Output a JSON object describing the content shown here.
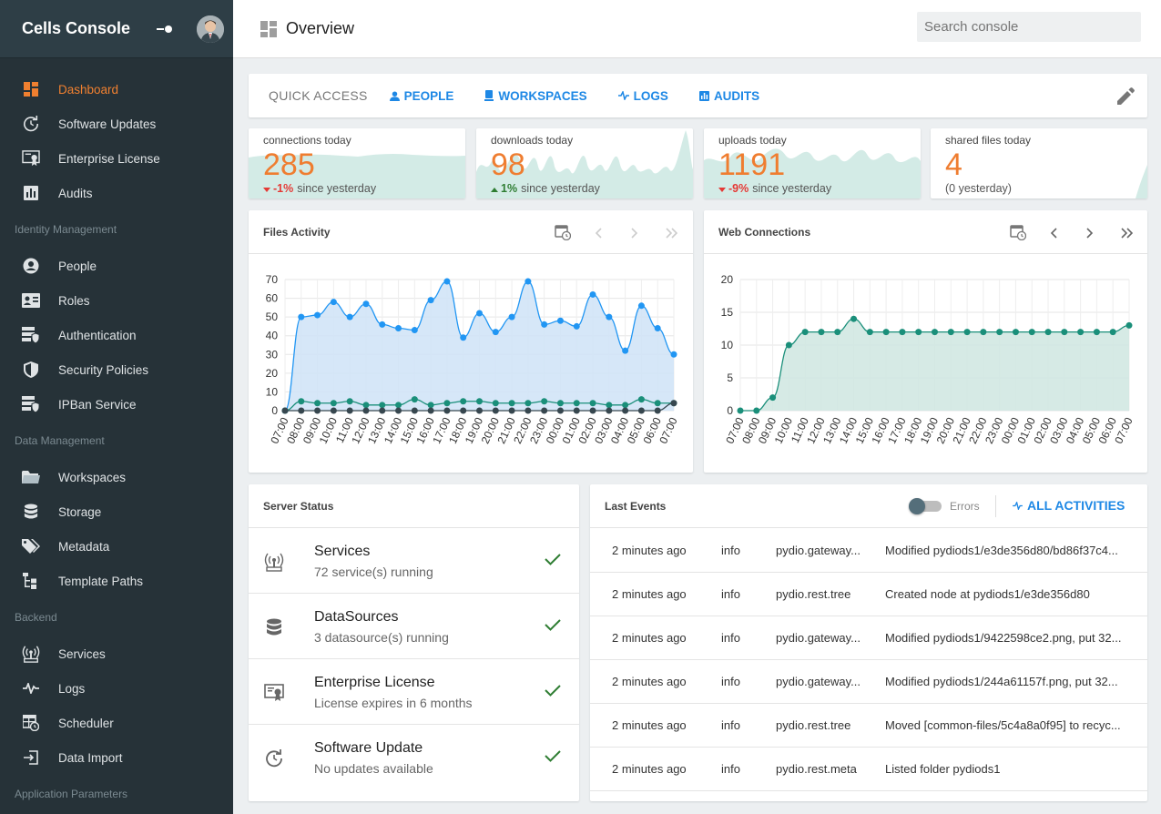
{
  "app": {
    "title": "Cells Console"
  },
  "sidebar": {
    "groups": [
      {
        "items": [
          {
            "label": "Dashboard",
            "icon": "dashboard-icon",
            "active": true
          },
          {
            "label": "Software Updates"
          },
          {
            "label": "Enterprise License"
          },
          {
            "label": "Audits"
          }
        ]
      },
      {
        "title": "Identity Management",
        "items": [
          {
            "label": "People"
          },
          {
            "label": "Roles"
          },
          {
            "label": "Authentication"
          },
          {
            "label": "Security Policies"
          },
          {
            "label": "IPBan Service"
          }
        ]
      },
      {
        "title": "Data Management",
        "items": [
          {
            "label": "Workspaces"
          },
          {
            "label": "Storage"
          },
          {
            "label": "Metadata"
          },
          {
            "label": "Template Paths"
          }
        ]
      },
      {
        "title": "Backend",
        "items": [
          {
            "label": "Services"
          },
          {
            "label": "Logs"
          },
          {
            "label": "Scheduler"
          },
          {
            "label": "Data Import"
          }
        ]
      },
      {
        "title": "Application Parameters",
        "items": []
      }
    ]
  },
  "header": {
    "title": "Overview",
    "search_placeholder": "Search console"
  },
  "quick_access": {
    "label": "QUICK ACCESS",
    "links": [
      "PEOPLE",
      "WORKSPACES",
      "LOGS",
      "AUDITS"
    ]
  },
  "stats": [
    {
      "label": "connections today",
      "value": "285",
      "change": "-1%",
      "change_dir": "down",
      "suffix": "since yesterday",
      "has_spark": true
    },
    {
      "label": "downloads today",
      "value": "98",
      "change": "1%",
      "change_dir": "up",
      "suffix": "since yesterday",
      "has_spark": true
    },
    {
      "label": "uploads today",
      "value": "1191",
      "change": "-9%",
      "change_dir": "down",
      "suffix": "since yesterday",
      "has_spark": true
    },
    {
      "label": "shared files today",
      "value": "4",
      "note": "(0 yesterday)",
      "has_spark": false
    }
  ],
  "files_activity": {
    "title": "Files Activity",
    "chart_data": {
      "type": "line",
      "ylim": [
        0,
        70
      ],
      "yticks": [
        0,
        10,
        20,
        30,
        40,
        50,
        60,
        70
      ],
      "x": [
        "07:00",
        "08:00",
        "09:00",
        "10:00",
        "11:00",
        "12:00",
        "13:00",
        "14:00",
        "15:00",
        "16:00",
        "17:00",
        "18:00",
        "19:00",
        "20:00",
        "21:00",
        "22:00",
        "23:00",
        "00:00",
        "01:00",
        "02:00",
        "03:00",
        "04:00",
        "05:00",
        "06:00",
        "07:00"
      ],
      "series": [
        {
          "color": "#2196f3",
          "fill": "#cfe3f7",
          "values": [
            0,
            50,
            51,
            58,
            50,
            57,
            46,
            44,
            43,
            59,
            69,
            39,
            52,
            42,
            50,
            69,
            46,
            48,
            45,
            62,
            50,
            32,
            56,
            44,
            30
          ]
        },
        {
          "color": "#1a8f7a",
          "values": [
            0,
            5,
            4,
            4,
            5,
            3,
            3,
            3,
            6,
            3,
            4,
            5,
            5,
            4,
            4,
            4,
            5,
            4,
            4,
            4,
            3,
            3,
            6,
            4,
            4
          ]
        },
        {
          "color": "#37474f",
          "values": [
            0,
            0,
            0,
            0,
            0,
            0,
            0,
            0,
            0,
            0,
            0,
            0,
            0,
            0,
            0,
            0,
            0,
            0,
            0,
            0,
            0,
            0,
            0,
            0,
            4
          ]
        }
      ]
    }
  },
  "web_connections": {
    "title": "Web Connections",
    "chart_data": {
      "type": "area",
      "ylim": [
        0,
        20
      ],
      "yticks": [
        0,
        5,
        10,
        15,
        20
      ],
      "x": [
        "07:00",
        "08:00",
        "09:00",
        "10:00",
        "11:00",
        "12:00",
        "13:00",
        "14:00",
        "15:00",
        "16:00",
        "17:00",
        "18:00",
        "19:00",
        "20:00",
        "21:00",
        "22:00",
        "23:00",
        "00:00",
        "01:00",
        "02:00",
        "03:00",
        "04:00",
        "05:00",
        "06:00",
        "07:00"
      ],
      "series": [
        {
          "color": "#1a8f7a",
          "fill": "#cfe6e0",
          "values": [
            0,
            0,
            2,
            10,
            12,
            12,
            12,
            14,
            12,
            12,
            12,
            12,
            12,
            12,
            12,
            12,
            12,
            12,
            12,
            12,
            12,
            12,
            12,
            12,
            13
          ]
        }
      ]
    }
  },
  "server_status": {
    "title": "Server Status",
    "items": [
      {
        "name": "Services",
        "desc": "72 service(s) running",
        "icon": "router-icon"
      },
      {
        "name": "DataSources",
        "desc": "3 datasource(s) running",
        "icon": "database-icon"
      },
      {
        "name": "Enterprise License",
        "desc": "License expires in 6 months",
        "icon": "certificate-icon"
      },
      {
        "name": "Software Update",
        "desc": "No updates available",
        "icon": "update-icon"
      }
    ]
  },
  "last_events": {
    "title": "Last Events",
    "toggle_label": "Errors",
    "all_label": "ALL ACTIVITIES",
    "rows": [
      {
        "time": "2 minutes ago",
        "level": "info",
        "service": "pydio.gateway...",
        "msg": "Modified pydiods1/e3de356d80/bd86f37c4..."
      },
      {
        "time": "2 minutes ago",
        "level": "info",
        "service": "pydio.rest.tree",
        "msg": "Created node at pydiods1/e3de356d80"
      },
      {
        "time": "2 minutes ago",
        "level": "info",
        "service": "pydio.gateway...",
        "msg": "Modified pydiods1/9422598ce2.png, put 32..."
      },
      {
        "time": "2 minutes ago",
        "level": "info",
        "service": "pydio.gateway...",
        "msg": "Modified pydiods1/244a61157f.png, put 32..."
      },
      {
        "time": "2 minutes ago",
        "level": "info",
        "service": "pydio.rest.tree",
        "msg": "Moved [common-files/5c4a8a0f95] to recyc..."
      },
      {
        "time": "2 minutes ago",
        "level": "info",
        "service": "pydio.rest.meta",
        "msg": "Listed folder pydiods1"
      }
    ]
  },
  "colors": {
    "accent": "#ef7d30",
    "link": "#1e88e5",
    "ok": "#2e7d32",
    "sidebar": "#263238"
  }
}
